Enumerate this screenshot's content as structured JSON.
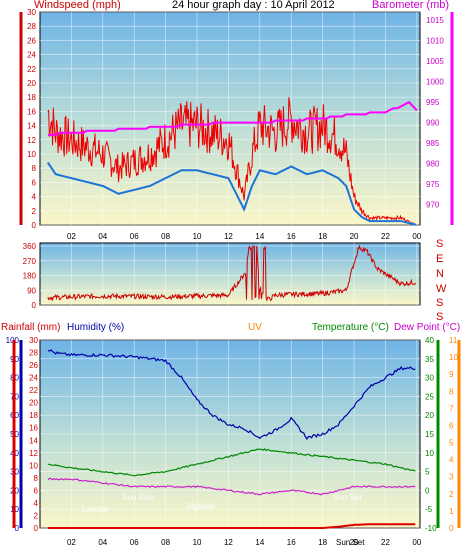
{
  "top_labels": {
    "windspeed": "Windspeed (mph)",
    "title": "24 hour graph day : 10 April 2012",
    "barometer": "Barometer (mb)"
  },
  "wind_compass": [
    "S",
    "E",
    "N",
    "W",
    "S",
    "S"
  ],
  "bottom_header": {
    "rainfall": "Rainfall (mm)",
    "humidity": "Humidity (%)",
    "uv": "UV",
    "temperature": "Temperature (°C)",
    "dewpoint": "Dew Point (°C)"
  },
  "annotations": {
    "low_tide": "Lowtide",
    "sun_rise": "Sun Rise",
    "high_tide": "Hightide",
    "sun_set": "Sun Set",
    "sun_set_tick": "Sun Set"
  },
  "colors": {
    "wind_gust": "#ee0000",
    "wind_avg": "#1e73d8",
    "barometer": "#ff00ff",
    "direction": "#cc0000",
    "humidity": "#0000aa",
    "temperature": "#008800",
    "dewpoint": "#cc22cc",
    "rainfall": "#dd0000",
    "uv_axis": "#ff8800",
    "bg_top": "#6fb4e6",
    "bg_bottom": "#fbf6c8"
  },
  "chart_data": [
    {
      "type": "line",
      "title": "24 hour graph day : 10 April 2012",
      "x_ticks": [
        "02",
        "04",
        "06",
        "08",
        "10",
        "12",
        "14",
        "16",
        "18",
        "20",
        "22",
        "00"
      ],
      "y_left": {
        "label": "Windspeed (mph)",
        "range": [
          0,
          30
        ],
        "ticks": [
          0,
          2,
          4,
          6,
          8,
          10,
          12,
          14,
          16,
          18,
          20,
          22,
          24,
          26,
          28,
          30
        ]
      },
      "y_right": {
        "label": "Barometer (mb)",
        "range": [
          965,
          1017
        ],
        "ticks": [
          970,
          975,
          980,
          985,
          990,
          995,
          1000,
          1005,
          1010,
          1015
        ]
      },
      "series": [
        {
          "name": "Windspeed (mph)",
          "axis": "left",
          "x": [
            0.5,
            1,
            2,
            3,
            4,
            5,
            6,
            7,
            8,
            9,
            10,
            11,
            12,
            12.5,
            13,
            13.5,
            14,
            15,
            16,
            17,
            18,
            19,
            19.5,
            20,
            20.5,
            21,
            22,
            23,
            24
          ],
          "values": [
            16,
            13,
            12,
            11,
            10,
            8,
            9,
            10,
            12,
            14,
            14,
            13,
            12,
            8,
            4,
            10,
            14,
            13,
            15,
            13,
            14,
            12,
            10,
            4,
            2,
            1,
            1,
            1,
            0
          ]
        },
        {
          "name": "Barometer (mb)",
          "axis": "right",
          "x": [
            0.5,
            2,
            4,
            6,
            8,
            10,
            12,
            14,
            16,
            18,
            20,
            22,
            23,
            23.5,
            24
          ],
          "values": [
            987,
            987.5,
            988,
            988.5,
            989,
            989.5,
            990,
            990,
            990.5,
            991,
            992,
            992.5,
            994,
            995,
            993
          ]
        }
      ]
    },
    {
      "type": "line",
      "title": "",
      "y_left": {
        "ticks": [
          0,
          90,
          180,
          270,
          360
        ]
      },
      "y_right": {
        "ticks": [
          "S",
          "E",
          "N",
          "W",
          "S",
          "S"
        ]
      },
      "series": [
        {
          "name": "",
          "x": [
            0.5,
            4,
            8,
            12,
            13.1,
            13.3,
            13.8,
            14,
            14.5,
            15,
            16,
            18,
            19.5,
            20.3,
            20.8,
            21.5,
            23,
            24
          ],
          "values": [
            45,
            55,
            50,
            60,
            200,
            355,
            350,
            100,
            30,
            60,
            65,
            70,
            90,
            355,
            330,
            220,
            130,
            140
          ]
        }
      ]
    },
    {
      "type": "line",
      "title": "",
      "y_axes": {
        "rainfall": {
          "label": "Rainfall (mm)",
          "range": [
            0,
            30
          ],
          "ticks": [
            0,
            2,
            4,
            6,
            8,
            10,
            12,
            14,
            16,
            18,
            20,
            22,
            24,
            26,
            28,
            30
          ]
        },
        "humidity": {
          "label": "Humidity (%)",
          "range": [
            0,
            100
          ],
          "ticks": [
            0,
            10,
            20,
            30,
            40,
            50,
            60,
            70,
            80,
            90,
            100
          ]
        },
        "temperature": {
          "label": "Temperature (°C)",
          "range": [
            -10,
            40
          ],
          "ticks": [
            -10,
            -5,
            0,
            5,
            10,
            15,
            20,
            25,
            30,
            35,
            40
          ]
        },
        "uv_dewpoint": {
          "label": "Dew Point (°C)",
          "range": [
            0,
            11
          ],
          "ticks": [
            0,
            1,
            2,
            3,
            4,
            5,
            6,
            7,
            8,
            9,
            10,
            11
          ]
        }
      },
      "x_ticks": [
        "02",
        "04",
        "06",
        "08",
        "10",
        "12",
        "14",
        "16",
        "18",
        "20",
        "22",
        "00"
      ],
      "series": [
        {
          "name": "Humidity (%)",
          "x": [
            0.5,
            1,
            2,
            4,
            6,
            7,
            8,
            9,
            10,
            11,
            12,
            13,
            14,
            15,
            16,
            17,
            18,
            19,
            20,
            21,
            22,
            23,
            24
          ],
          "values": [
            95,
            93,
            92,
            92,
            91,
            90,
            89,
            80,
            68,
            60,
            55,
            53,
            48,
            52,
            58,
            48,
            50,
            55,
            65,
            75,
            80,
            85,
            85
          ]
        },
        {
          "name": "Temperature (°C)",
          "x": [
            0.5,
            2,
            4,
            6,
            8,
            10,
            12,
            14,
            16,
            18,
            20,
            22,
            24
          ],
          "values": [
            7,
            6,
            5,
            4,
            5,
            7,
            9,
            11,
            10,
            9,
            8,
            7,
            5
          ]
        },
        {
          "name": "Dew Point (°C)",
          "x": [
            0.5,
            2,
            4,
            6,
            8,
            10,
            12,
            14,
            16,
            18,
            20,
            22,
            24
          ],
          "values": [
            3,
            3,
            2,
            1,
            1,
            1,
            0,
            -1,
            0,
            -1,
            1,
            1,
            1
          ]
        },
        {
          "name": "Rainfall (mm)",
          "x": [
            0.5,
            18,
            19,
            20,
            21,
            22,
            23,
            24
          ],
          "values": [
            0,
            0,
            0.2,
            0.5,
            0.6,
            0.6,
            0.6,
            0.6
          ]
        }
      ]
    }
  ]
}
